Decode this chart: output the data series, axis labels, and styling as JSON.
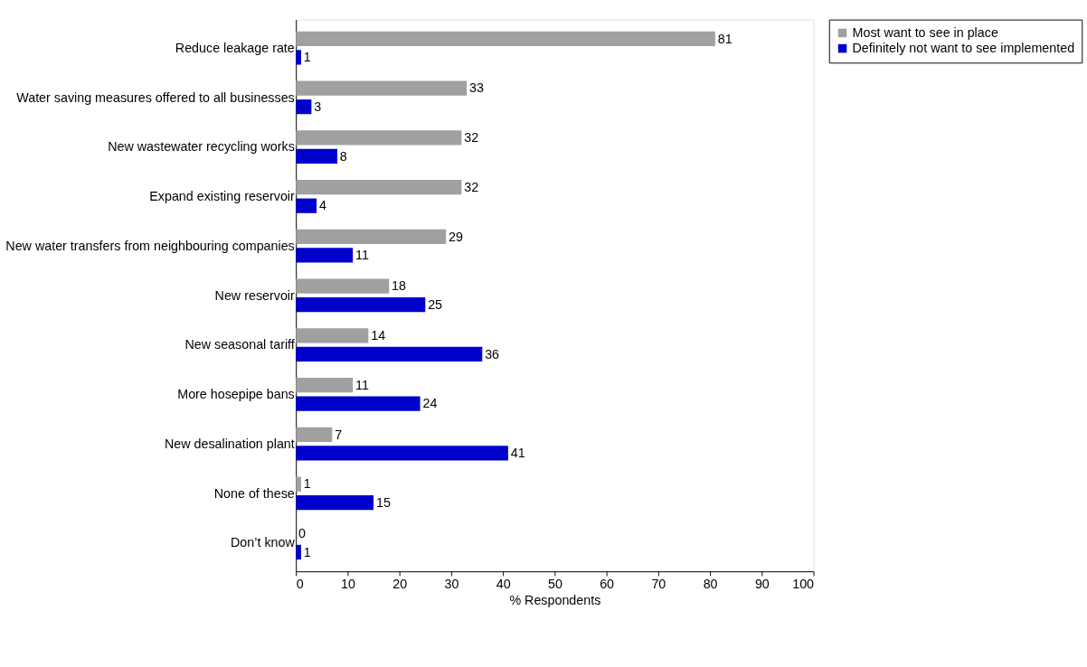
{
  "chart_data": {
    "type": "bar",
    "orientation": "horizontal",
    "xlabel": "% Respondents",
    "categories": [
      "Reduce leakage rate",
      "Water saving measures offered to all businesses",
      "New wastewater recycling works",
      "Expand existing reservoir",
      "New water transfers from neighbouring companies",
      "New reservoir",
      "New seasonal tariff",
      "More hosepipe bans",
      "New desalination plant",
      "None of these",
      "Don’t know"
    ],
    "series": [
      {
        "name": "Most want to see in place",
        "color": "#a0a0a0",
        "values": [
          81,
          33,
          32,
          32,
          29,
          18,
          14,
          11,
          7,
          1,
          0
        ]
      },
      {
        "name": "Definitely not want to see implemented",
        "color": "#0000cc",
        "values": [
          1,
          3,
          8,
          4,
          11,
          25,
          36,
          24,
          41,
          15,
          1
        ]
      }
    ],
    "xlim": [
      0,
      100
    ],
    "xticks": [
      0,
      10,
      20,
      30,
      40,
      50,
      60,
      70,
      80,
      90,
      100
    ],
    "grid": false,
    "legend": "right",
    "data_labels": true
  }
}
